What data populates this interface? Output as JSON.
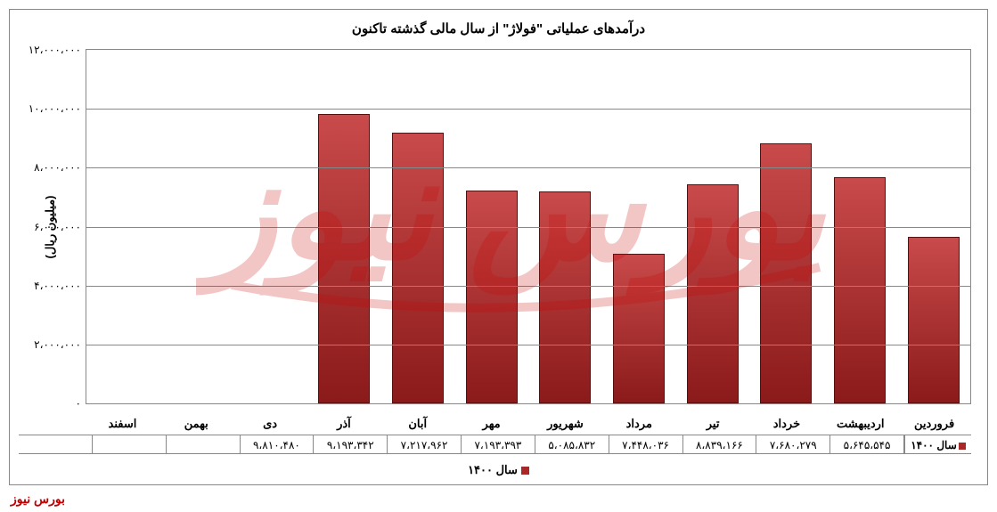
{
  "chart": {
    "type": "bar",
    "title": "درآمدهای عملیاتی \"فولاژ\" از سال مالی گذشته تاکنون",
    "title_fontsize": 15,
    "y_axis_title": "(میلیون ریال)",
    "ylim_min": 0,
    "ylim_max": 12000000,
    "ytick_step": 2000000,
    "yticks": [
      {
        "v": 0,
        "label": "۰"
      },
      {
        "v": 2000000,
        "label": "۲،۰۰۰،۰۰۰"
      },
      {
        "v": 4000000,
        "label": "۴،۰۰۰،۰۰۰"
      },
      {
        "v": 6000000,
        "label": "۶،۰۰۰،۰۰۰"
      },
      {
        "v": 8000000,
        "label": "۸،۰۰۰،۰۰۰"
      },
      {
        "v": 10000000,
        "label": "۱۰،۰۰۰،۰۰۰"
      },
      {
        "v": 12000000,
        "label": "۱۲،۰۰۰،۰۰۰"
      }
    ],
    "series_name": "سال ۱۴۰۰",
    "categories": [
      {
        "label": "فروردین",
        "value": 5645545,
        "value_label": "۵،۶۴۵،۵۴۵"
      },
      {
        "label": "اردیبهشت",
        "value": 7680279,
        "value_label": "۷،۶۸۰،۲۷۹"
      },
      {
        "label": "خرداد",
        "value": 8839166,
        "value_label": "۸،۸۳۹،۱۶۶"
      },
      {
        "label": "تیر",
        "value": 7448036,
        "value_label": "۷،۴۴۸،۰۳۶"
      },
      {
        "label": "مرداد",
        "value": 5085832,
        "value_label": "۵،۰۸۵،۸۳۲"
      },
      {
        "label": "شهریور",
        "value": 7193393,
        "value_label": "۷،۱۹۳،۳۹۳"
      },
      {
        "label": "مهر",
        "value": 7217962,
        "value_label": "۷،۲۱۷،۹۶۲"
      },
      {
        "label": "آبان",
        "value": 9193342,
        "value_label": "۹،۱۹۳،۳۴۲"
      },
      {
        "label": "آذر",
        "value": 9810480,
        "value_label": "۹،۸۱۰،۴۸۰"
      },
      {
        "label": "دی",
        "value": null,
        "value_label": ""
      },
      {
        "label": "بهمن",
        "value": null,
        "value_label": ""
      },
      {
        "label": "اسفند",
        "value": null,
        "value_label": ""
      }
    ],
    "bar_fill_top": "#c94a4a",
    "bar_fill_bottom": "#8b1a1a",
    "bar_border": "#5a0f0f",
    "grid_color": "#888888",
    "background_color": "#ffffff",
    "bar_width_ratio": 0.7
  },
  "footer_brand": "بورس نیوز",
  "watermark_text": "بورس نیوز"
}
